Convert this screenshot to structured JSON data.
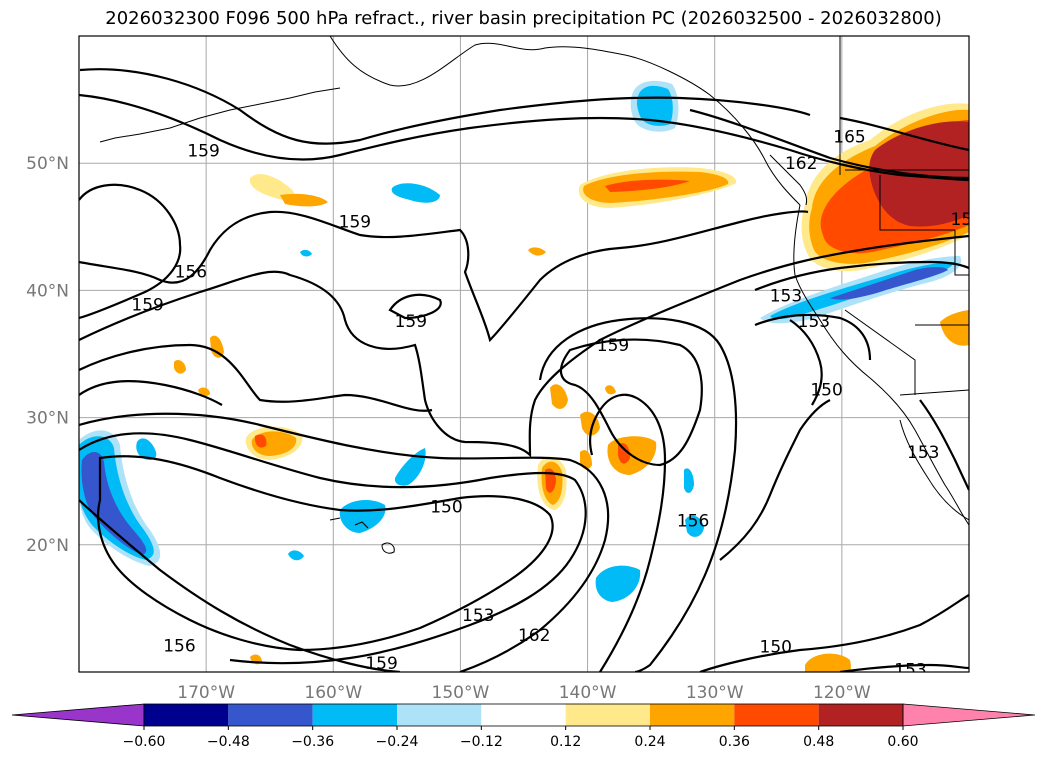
{
  "title": "2026032300 F096 500 hPa refract., river basin precipitation PC (2026032500 - 2026032800)",
  "map": {
    "lon_range": [
      -180,
      -110
    ],
    "lat_range": [
      10,
      60
    ],
    "lat_ticks": [
      {
        "v": 50,
        "label": "50°N"
      },
      {
        "v": 40,
        "label": "40°N"
      },
      {
        "v": 30,
        "label": "30°N"
      },
      {
        "v": 20,
        "label": "20°N"
      }
    ],
    "lon_ticks": [
      {
        "v": -170,
        "label": "170°W"
      },
      {
        "v": -160,
        "label": "160°W"
      },
      {
        "v": -150,
        "label": "150°W"
      },
      {
        "v": -140,
        "label": "140°W"
      },
      {
        "v": -130,
        "label": "130°W"
      },
      {
        "v": -120,
        "label": "120°W"
      }
    ],
    "grid": true,
    "contour_labels": [
      {
        "text": "159",
        "lon": -170.2,
        "lat": 51.0
      },
      {
        "text": "159",
        "lon": -158.3,
        "lat": 45.4
      },
      {
        "text": "156",
        "lon": -171.2,
        "lat": 41.5
      },
      {
        "text": "159",
        "lon": -174.6,
        "lat": 38.9
      },
      {
        "text": "159",
        "lon": -153.9,
        "lat": 37.6
      },
      {
        "text": "159",
        "lon": -138.0,
        "lat": 35.7
      },
      {
        "text": "165",
        "lon": -119.4,
        "lat": 52.1
      },
      {
        "text": "162",
        "lon": -123.2,
        "lat": 50.0
      },
      {
        "text": "15",
        "lon": -110.6,
        "lat": 45.6
      },
      {
        "text": "153",
        "lon": -124.4,
        "lat": 39.6
      },
      {
        "text": "153",
        "lon": -122.2,
        "lat": 37.6
      },
      {
        "text": "150",
        "lon": -121.2,
        "lat": 32.2
      },
      {
        "text": "153",
        "lon": -113.6,
        "lat": 27.3
      },
      {
        "text": "150",
        "lon": -151.1,
        "lat": 23.0
      },
      {
        "text": "156",
        "lon": -131.7,
        "lat": 21.9
      },
      {
        "text": "153",
        "lon": -148.6,
        "lat": 14.5
      },
      {
        "text": "162",
        "lon": -144.2,
        "lat": 12.9
      },
      {
        "text": "156",
        "lon": -172.1,
        "lat": 12.1
      },
      {
        "text": "159",
        "lon": -156.2,
        "lat": 10.7
      },
      {
        "text": "150",
        "lon": -125.2,
        "lat": 12.0
      },
      {
        "text": "153",
        "lon": -114.6,
        "lat": 10.2
      }
    ]
  },
  "colorbar": {
    "ticks": [
      "−0.60",
      "−0.48",
      "−0.36",
      "−0.24",
      "−0.12",
      "0.12",
      "0.24",
      "0.36",
      "0.48",
      "0.60"
    ],
    "colors": [
      "#9a35cc",
      "#00008f",
      "#3556cc",
      "#00bbf6",
      "#aee2f8",
      "#ffffff",
      "#ffe98a",
      "#ffa500",
      "#ff4a00",
      "#b22222",
      "#ff82ad"
    ]
  }
}
